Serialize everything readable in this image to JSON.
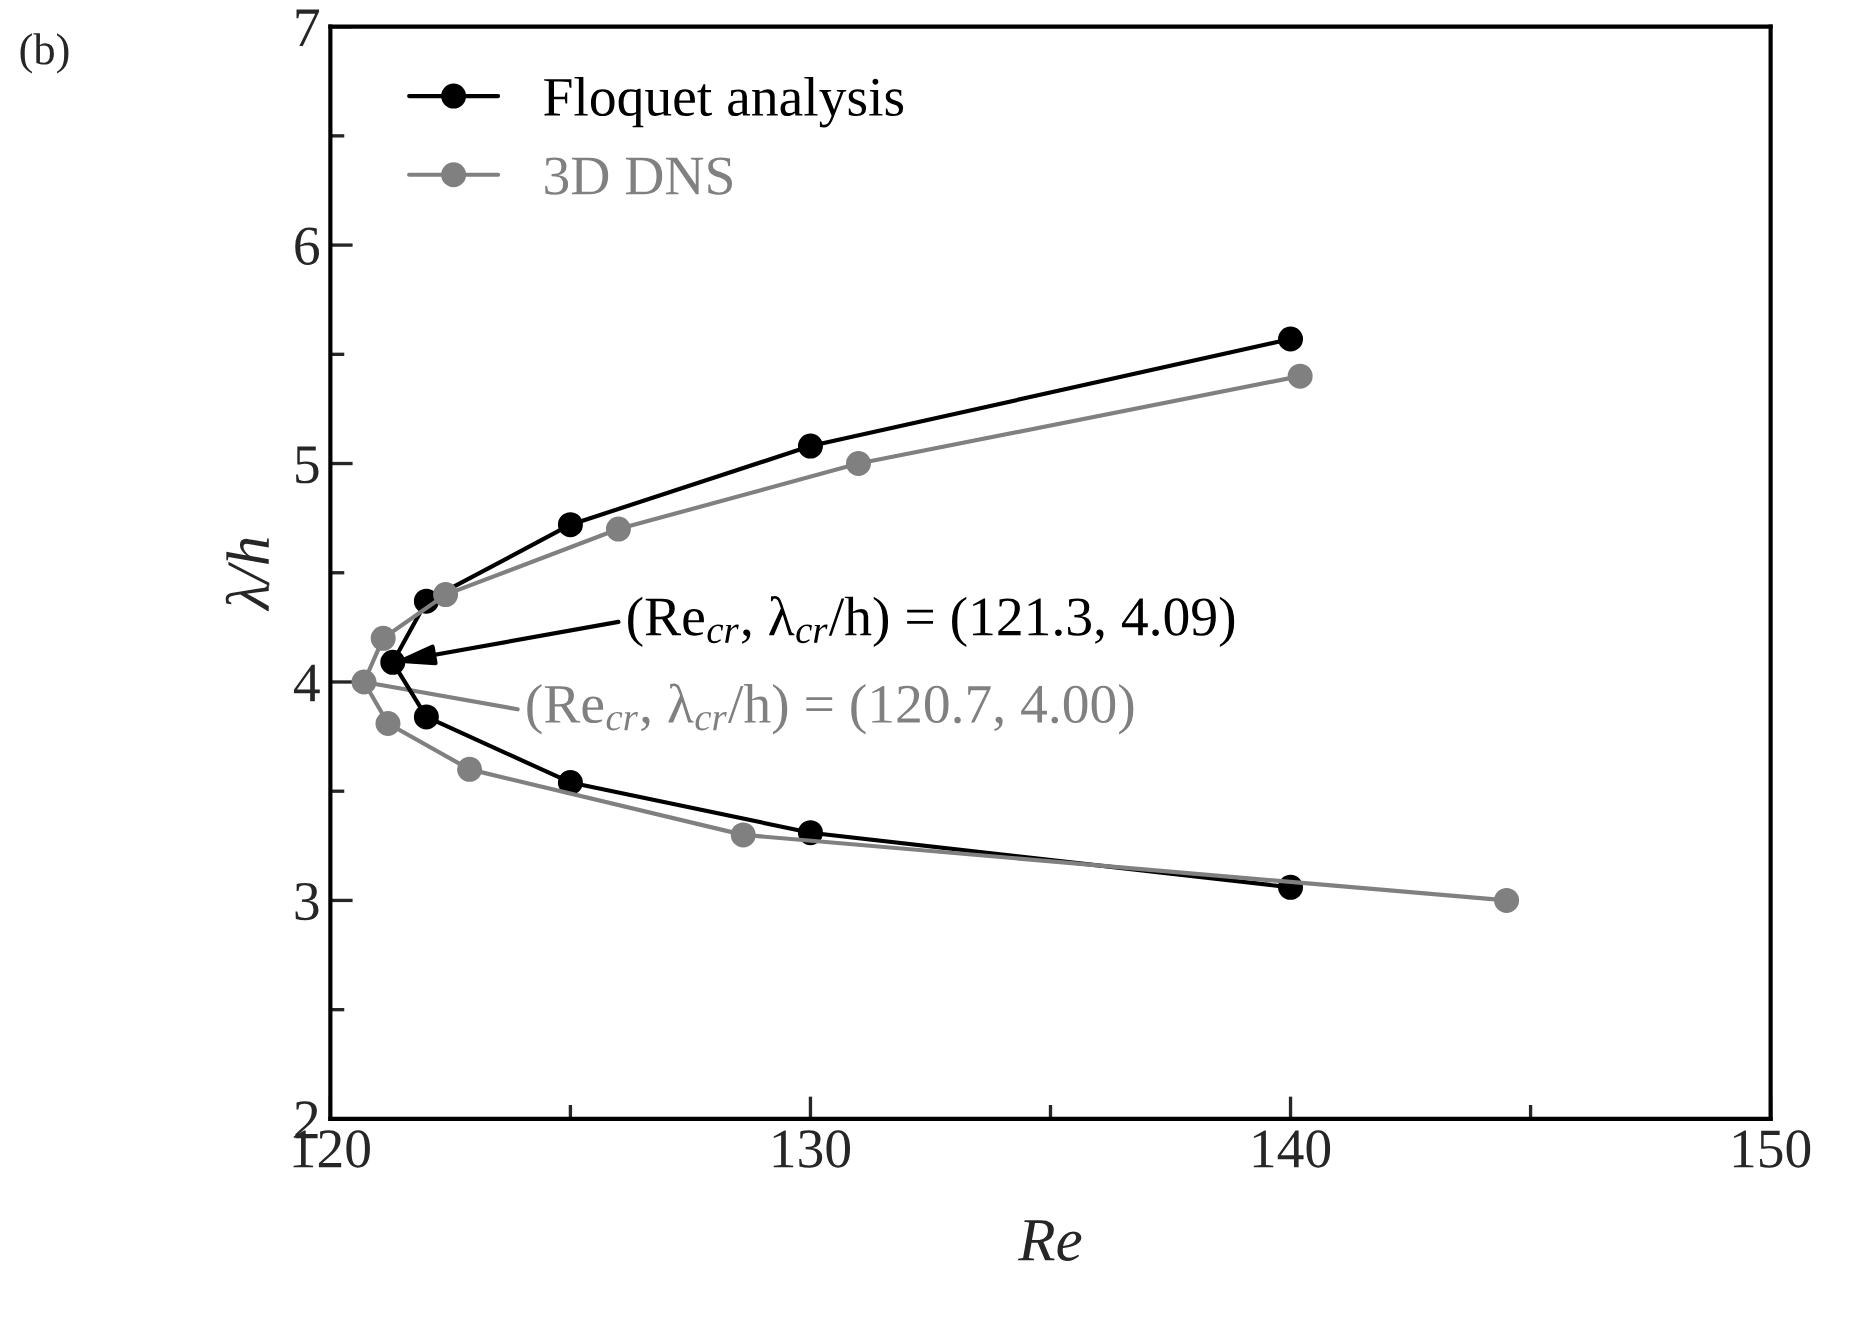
{
  "chart_data": {
    "type": "line",
    "xlabel": "Re",
    "ylabel": "λ/h",
    "xlim": [
      120,
      150
    ],
    "ylim": [
      2,
      7
    ],
    "xticks": [
      120,
      130,
      140,
      150
    ],
    "yticks": [
      2,
      3,
      4,
      5,
      6,
      7
    ],
    "marker": "circle",
    "line_style": "solid",
    "grid": false,
    "legend": "top left",
    "series": [
      {
        "name": "Floquet analysis",
        "color": "#000000",
        "x": [
          140,
          130,
          125,
          122,
          121.3,
          122,
          125,
          130,
          140
        ],
        "values": [
          5.57,
          5.08,
          4.72,
          4.37,
          4.09,
          3.84,
          3.54,
          3.31,
          3.06
        ]
      },
      {
        "name": "3D DNS",
        "color": "#808080",
        "x": [
          140.2,
          131.0,
          126.0,
          122.4,
          121.1,
          120.7,
          121.2,
          122.9,
          128.6,
          144.5
        ],
        "values": [
          5.4,
          5.0,
          4.7,
          4.4,
          4.2,
          4.0,
          3.81,
          3.6,
          3.3,
          3.0
        ]
      }
    ],
    "annotations": [
      {
        "text": "(Re$_{cr}$, λ$_{cr}$/h) = (121.3, 4.09)",
        "x": 121.3,
        "y": 4.09
      },
      {
        "text": "(Re$_{cr}$, λ$_{cr}$/h) = (120.7, 4.00)",
        "x": 120.7,
        "y": 4.0
      },
      "(b)"
    ]
  }
}
